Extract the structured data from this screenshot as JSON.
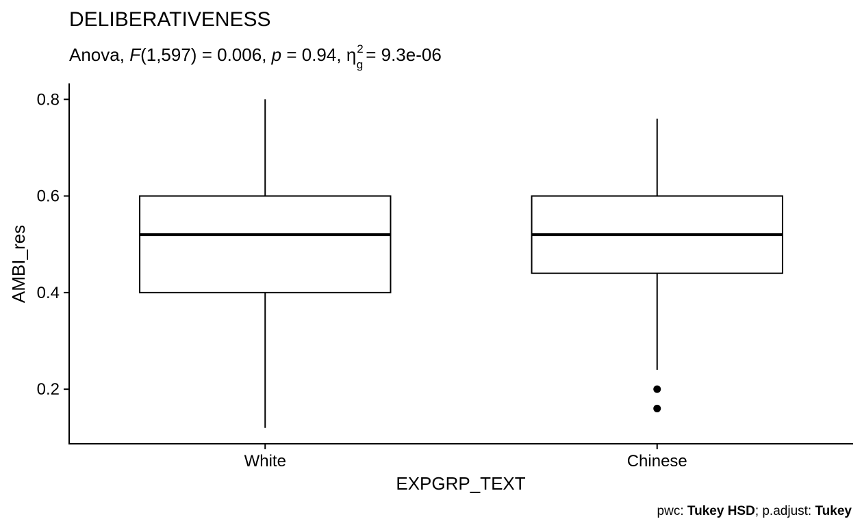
{
  "chart_data": {
    "type": "boxplot",
    "title": "DELIBERATIVENESS",
    "subtitle": {
      "test": "Anova",
      "stat_symbol": "F",
      "df": "(1,597)",
      "stat_value": "= 0.006",
      "p_symbol": "p",
      "p_value": "= 0.94",
      "effect_symbol": "η",
      "effect_sub": "g",
      "effect_sup": "2",
      "effect_value": "= 9.3e-06"
    },
    "xlabel": "EXPGRP_TEXT",
    "ylabel": "AMBI_res",
    "ylim": [
      0.087,
      0.833
    ],
    "yticks": [
      0.2,
      0.4,
      0.6,
      0.8
    ],
    "ytick_labels": [
      "0.2",
      "0.4",
      "0.6",
      "0.8"
    ],
    "categories": [
      "White",
      "Chinese"
    ],
    "groups": [
      {
        "name": "White",
        "whisker_low": 0.12,
        "q1": 0.4,
        "median": 0.52,
        "q3": 0.6,
        "whisker_high": 0.8,
        "outliers": []
      },
      {
        "name": "Chinese",
        "whisker_low": 0.24,
        "q1": 0.44,
        "median": 0.52,
        "q3": 0.6,
        "whisker_high": 0.76,
        "outliers": [
          0.2,
          0.16
        ]
      }
    ],
    "grid": false,
    "caption": {
      "pwc_label": "pwc: ",
      "pwc_value": "Tukey HSD",
      "sep": "; p.adjust: ",
      "adjust_value": "Tukey"
    }
  }
}
